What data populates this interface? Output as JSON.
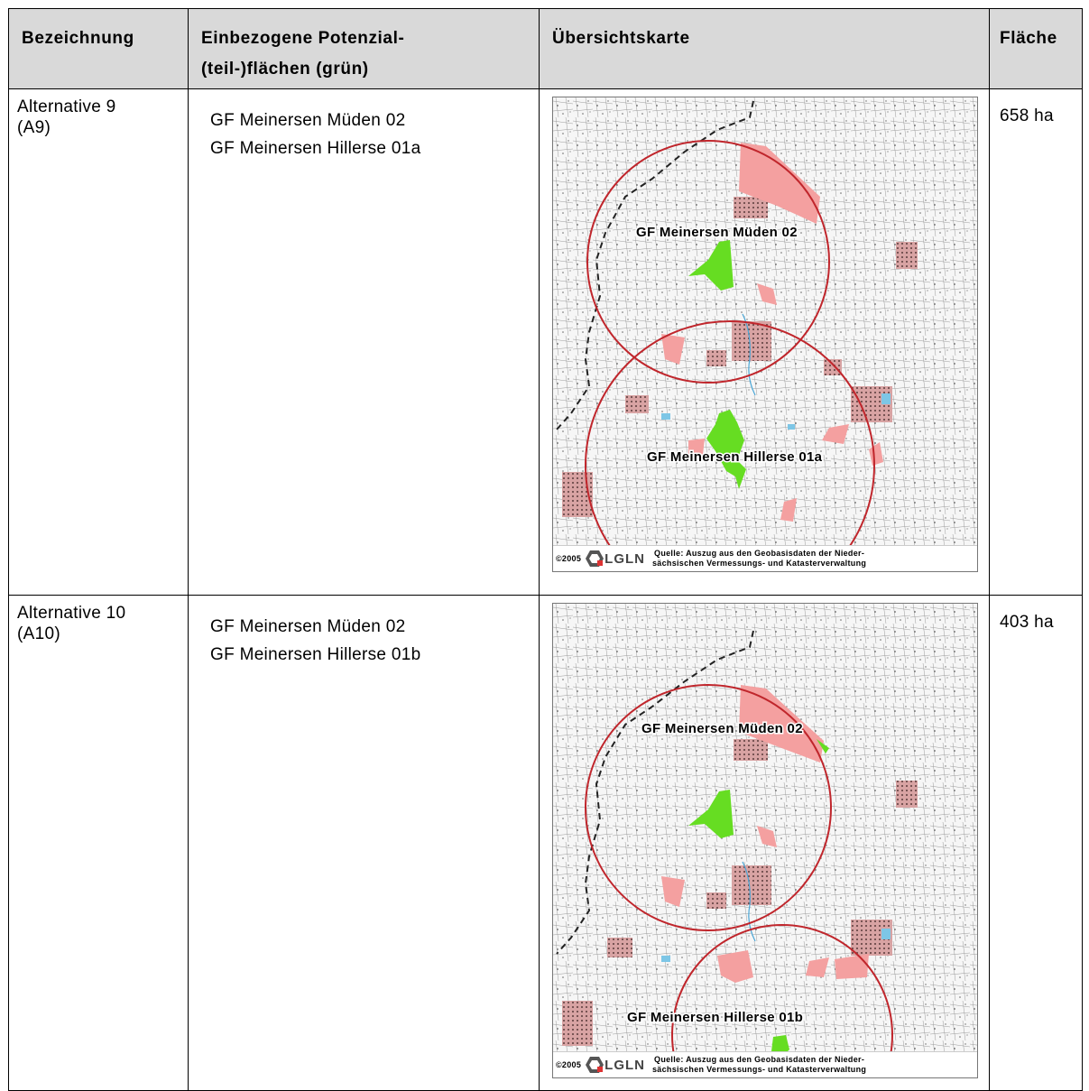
{
  "table": {
    "headers": [
      "Bezeichnung",
      "Einbezogene Potenzial-(teil-)flächen (grün)",
      "Übersichtskarte",
      "Fläche"
    ],
    "header_col2_line1": "Einbezogene Potenzial-",
    "header_col2_line2": "(teil-)flächen (grün)",
    "rows": [
      {
        "name_line1": "Alternative 9",
        "name_line2": "(A9)",
        "areas": [
          "GF Meinersen Müden 02",
          "GF Meinersen Hillerse 01a"
        ],
        "map_labels": [
          "GF Meinersen Müden 02",
          "GF Meinersen Hillerse 01a"
        ],
        "flaeche": "658 ha"
      },
      {
        "name_line1": "Alternative 10",
        "name_line2": "(A10)",
        "areas": [
          "GF Meinersen Müden 02",
          "GF Meinersen Hillerse 01b"
        ],
        "map_labels": [
          "GF Meinersen Müden 02",
          "GF Meinersen Hillerse 01b"
        ],
        "flaeche": "403 ha"
      }
    ]
  },
  "map_credit": {
    "year": "©2005",
    "logo_text": "LGLN",
    "source_line1": "Quelle: Auszug aus den Geobasisdaten der Nieder-",
    "source_line2": "sächsischen Vermessungs- und Katasterverwaltung"
  },
  "colors": {
    "potential_area": "#66dd22",
    "other_area": "#f4a0a0",
    "circle": "#c0262c",
    "border_dash": "#222222",
    "header_bg": "#d9d9d9"
  }
}
